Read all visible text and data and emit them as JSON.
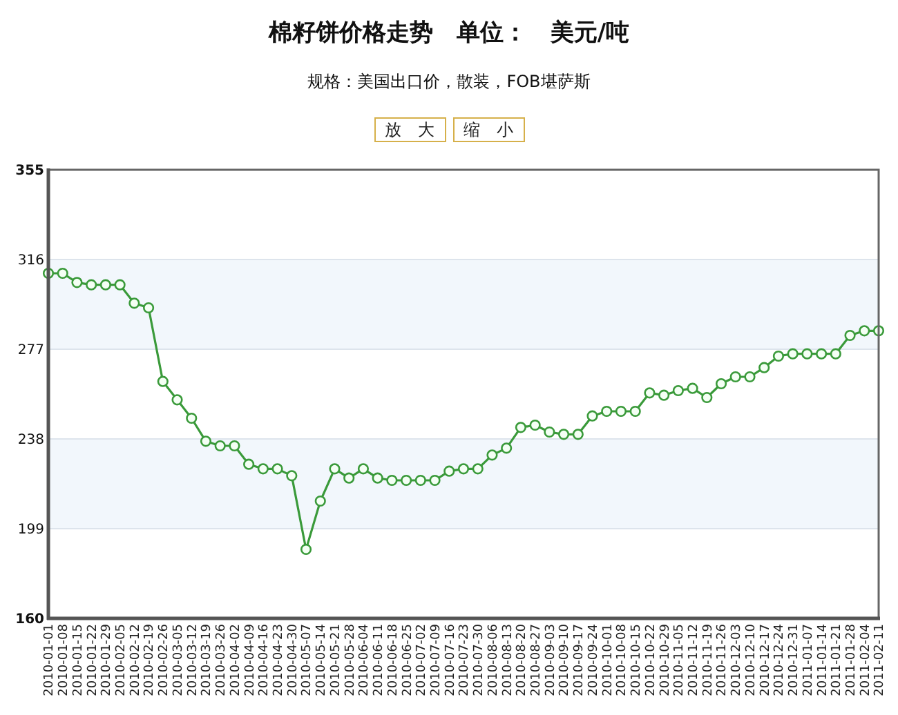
{
  "chart_data": {
    "type": "line",
    "title": "棉籽饼价格走势　单位：　美元/吨",
    "subtitle": "规格：美国出口价，散装，FOB堪萨斯",
    "annotations": [
      "放　大",
      "缩　小"
    ],
    "categories": [
      "2010-01-01",
      "2010-01-08",
      "2010-01-15",
      "2010-01-22",
      "2010-01-29",
      "2010-02-05",
      "2010-02-12",
      "2010-02-19",
      "2010-02-26",
      "2010-03-05",
      "2010-03-12",
      "2010-03-19",
      "2010-03-26",
      "2010-04-02",
      "2010-04-09",
      "2010-04-16",
      "2010-04-23",
      "2010-04-30",
      "2010-05-07",
      "2010-05-14",
      "2010-05-21",
      "2010-05-28",
      "2010-06-04",
      "2010-06-11",
      "2010-06-18",
      "2010-06-25",
      "2010-07-02",
      "2010-07-09",
      "2010-07-16",
      "2010-07-23",
      "2010-07-30",
      "2010-08-06",
      "2010-08-13",
      "2010-08-20",
      "2010-08-27",
      "2010-09-03",
      "2010-09-10",
      "2010-09-17",
      "2010-09-24",
      "2010-10-01",
      "2010-10-08",
      "2010-10-15",
      "2010-10-22",
      "2010-10-29",
      "2010-11-05",
      "2010-11-12",
      "2010-11-19",
      "2010-11-26",
      "2010-12-03",
      "2010-12-10",
      "2010-12-17",
      "2010-12-24",
      "2010-12-31",
      "2011-01-07",
      "2011-01-14",
      "2011-01-21",
      "2011-01-28",
      "2011-02-04",
      "2011-02-11"
    ],
    "series": [
      {
        "color": "#3a9a3a",
        "values": [
          310,
          310,
          306,
          305,
          305,
          305,
          297,
          295,
          263,
          255,
          247,
          237,
          235,
          235,
          227,
          225,
          225,
          222,
          190,
          211,
          225,
          221,
          225,
          221,
          220,
          220,
          220,
          220,
          224,
          225,
          225,
          231,
          234,
          243,
          244,
          241,
          240,
          240,
          248,
          250,
          250,
          250,
          258,
          257,
          259,
          260,
          256,
          262,
          265,
          265,
          269,
          274,
          275,
          275,
          275,
          275,
          283,
          285,
          285
        ]
      }
    ],
    "ylim": [
      160,
      355
    ],
    "yticks": [
      160,
      199,
      238,
      277,
      316,
      355
    ],
    "grid": "y",
    "bands": [
      {
        "axis": "y",
        "from": 199,
        "to": 238,
        "color": "#f2f7fc"
      },
      {
        "axis": "y",
        "from": 277,
        "to": 316,
        "color": "#f2f7fc"
      }
    ],
    "marker": "circle",
    "line_style": "solid"
  }
}
